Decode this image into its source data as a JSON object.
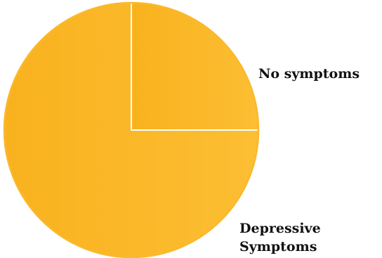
{
  "chart_data": {
    "type": "pie",
    "title": "",
    "slices": [
      {
        "label": "No symptoms",
        "value": 75,
        "color": "#FBB82A"
      },
      {
        "label": "Depressive Symptoms",
        "label_lines": [
          "Depressive",
          "Symptoms"
        ],
        "value": 25,
        "color": "#FBB82A"
      }
    ],
    "start_angle_deg": 90,
    "direction": "counterclockwise",
    "separator_color": "#FFFFFF",
    "legend": "none"
  }
}
